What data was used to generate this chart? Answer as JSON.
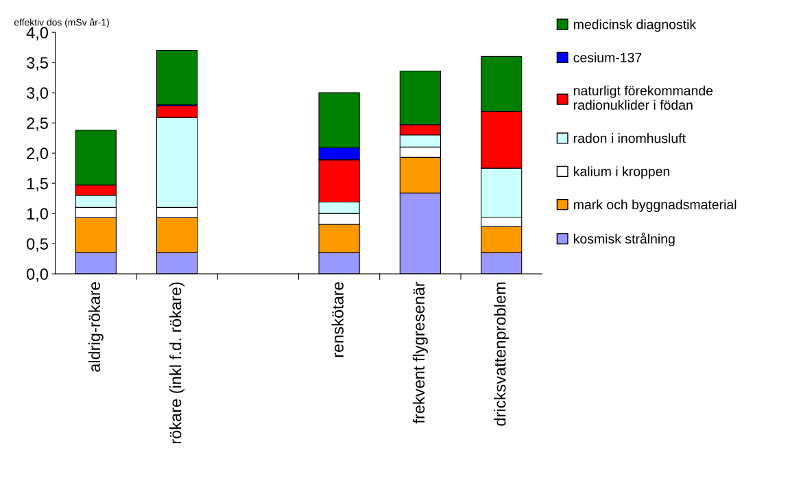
{
  "chart_data": {
    "type": "bar",
    "stacked": true,
    "ylabel": "effektiv dos (mSv år-1)",
    "categories": [
      "aldrig-rökare",
      "rökare (inkl f.d. rökare)",
      null,
      "renskötare",
      "frekvent flygresenär",
      "dricksvattenproblem"
    ],
    "ylim": [
      0,
      4
    ],
    "yticks": [
      {
        "value": 0,
        "label": "0,0"
      },
      {
        "value": 0.5,
        "label": "0,5"
      },
      {
        "value": 1,
        "label": "1,0"
      },
      {
        "value": 1.5,
        "label": "1,5"
      },
      {
        "value": 2,
        "label": "2,0"
      },
      {
        "value": 2.5,
        "label": "2,5"
      },
      {
        "value": 3,
        "label": "3,0"
      },
      {
        "value": 3.5,
        "label": "3,5"
      },
      {
        "value": 4,
        "label": "4,0"
      }
    ],
    "grid": false,
    "legend": "right",
    "series": [
      {
        "name": "kosmisk strålning",
        "color": "#9999ff",
        "values": [
          0.35,
          0.35,
          null,
          0.35,
          1.34,
          0.35
        ]
      },
      {
        "name": "mark och byggnadsmaterial",
        "color": "#ff9900",
        "values": [
          0.58,
          0.58,
          null,
          0.47,
          0.59,
          0.43
        ]
      },
      {
        "name": "kalium i kroppen",
        "color": "#ffffff",
        "values": [
          0.17,
          0.17,
          null,
          0.18,
          0.17,
          0.16
        ]
      },
      {
        "name": "radon i inomhusluft",
        "color": "#ccffff",
        "values": [
          0.2,
          1.49,
          null,
          0.19,
          0.2,
          0.81
        ]
      },
      {
        "name": "naturligt förekommande radionuklider i födan",
        "color": "#ff0000",
        "values": [
          0.17,
          0.19,
          null,
          0.7,
          0.17,
          0.94
        ]
      },
      {
        "name": "cesium-137",
        "color": "#0000ff",
        "values": [
          null,
          0.02,
          null,
          0.2,
          null,
          null
        ]
      },
      {
        "name": "medicinsk diagnostik",
        "color": "#008000",
        "values": [
          0.91,
          0.9,
          null,
          0.91,
          0.89,
          0.91
        ]
      }
    ]
  }
}
